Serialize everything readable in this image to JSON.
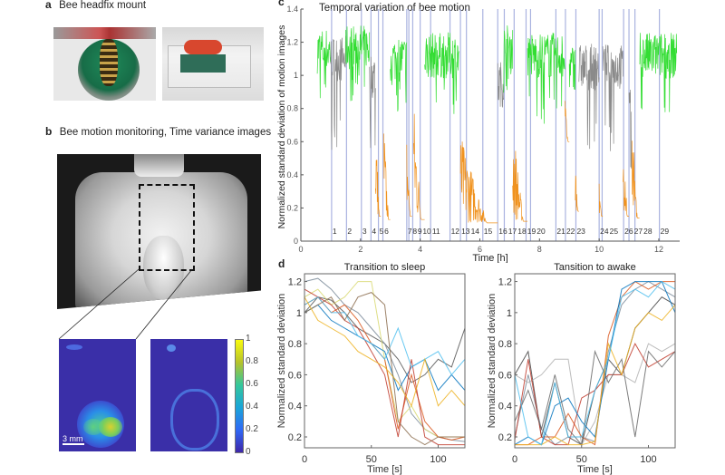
{
  "panels": {
    "a": {
      "label": "a",
      "title": "Bee headfix mount"
    },
    "b": {
      "label": "b",
      "title": "Bee motion monitoring, Time variance images",
      "scale_bar": "3 mm",
      "colorbar": {
        "ticks": [
          "1",
          "0.8",
          "0.6",
          "0.4",
          "0.2",
          "0"
        ],
        "colormap": "parula"
      }
    },
    "c": {
      "label": "c"
    },
    "d": {
      "label": "d"
    }
  },
  "chart_data": [
    {
      "type": "line",
      "title": "Temporal variation of bee motion",
      "xlabel": "Time [h]",
      "ylabel": "Normalized standard deviation of motion images",
      "xlim": [
        0,
        12.7
      ],
      "ylim": [
        0,
        1.4
      ],
      "xticks": [
        "0",
        "2",
        "4",
        "6",
        "8",
        "10",
        "12"
      ],
      "yticks": [
        "0",
        "0.2",
        "0.4",
        "0.6",
        "0.8",
        "1",
        "1.2",
        "1.4"
      ],
      "colors": {
        "active": "#33dd33",
        "rest": "#8a8a8a",
        "sleep": "#f0921e",
        "event_line": "#aab3e0"
      },
      "segments": [
        {
          "start": 0.55,
          "end": 1.0,
          "state": "active",
          "high": 1.15,
          "low": 1.0
        },
        {
          "start": 1.0,
          "end": 1.5,
          "state": "rest",
          "high": 1.1,
          "low": 0.75
        },
        {
          "start": 1.5,
          "end": 2.3,
          "state": "active",
          "high": 1.17,
          "low": 1.0
        },
        {
          "start": 2.3,
          "end": 2.5,
          "state": "rest",
          "high": 1.0,
          "low": 0.7
        },
        {
          "start": 2.5,
          "end": 2.68,
          "state": "sleep",
          "high": 0.82,
          "low": 0.15
        },
        {
          "start": 2.78,
          "end": 3.0,
          "state": "sleep",
          "high": 0.76,
          "low": 0.13
        },
        {
          "start": 3.0,
          "end": 3.55,
          "state": "active",
          "high": 1.1,
          "low": 0.95
        },
        {
          "start": 3.55,
          "end": 3.72,
          "state": "sleep",
          "high": 0.68,
          "low": 0.15
        },
        {
          "start": 3.78,
          "end": 4.15,
          "state": "sleep",
          "high": 0.88,
          "low": 0.13
        },
        {
          "start": 4.15,
          "end": 5.3,
          "state": "active",
          "high": 1.12,
          "low": 0.95
        },
        {
          "start": 5.35,
          "end": 6.6,
          "state": "sleep",
          "high": 0.65,
          "low": 0.11
        },
        {
          "start": 6.6,
          "end": 6.8,
          "state": "rest",
          "high": 0.95,
          "low": 0.6
        },
        {
          "start": 6.8,
          "end": 7.1,
          "state": "active",
          "high": 1.17,
          "low": 1.05
        },
        {
          "start": 7.1,
          "end": 7.6,
          "state": "sleep",
          "high": 0.75,
          "low": 0.12
        },
        {
          "start": 7.6,
          "end": 8.85,
          "state": "active",
          "high": 1.12,
          "low": 0.9
        },
        {
          "start": 8.85,
          "end": 9.0,
          "state": "sleep",
          "high": 0.88,
          "low": 0.6
        },
        {
          "start": 9.0,
          "end": 9.2,
          "state": "active",
          "high": 1.05,
          "low": 0.95
        },
        {
          "start": 9.2,
          "end": 9.32,
          "state": "sleep",
          "high": 0.6,
          "low": 0.18
        },
        {
          "start": 9.32,
          "end": 10.0,
          "state": "rest",
          "high": 1.05,
          "low": 0.75
        },
        {
          "start": 10.0,
          "end": 10.12,
          "state": "sleep",
          "high": 0.35,
          "low": 0.15
        },
        {
          "start": 10.12,
          "end": 10.8,
          "state": "rest",
          "high": 1.05,
          "low": 0.7
        },
        {
          "start": 10.8,
          "end": 11.0,
          "state": "sleep",
          "high": 0.75,
          "low": 0.15
        },
        {
          "start": 11.0,
          "end": 11.08,
          "state": "rest",
          "high": 0.9,
          "low": 0.6
        },
        {
          "start": 11.1,
          "end": 11.35,
          "state": "sleep",
          "high": 0.8,
          "low": 0.14
        },
        {
          "start": 11.35,
          "end": 12.6,
          "state": "active",
          "high": 1.12,
          "low": 0.9
        }
      ],
      "events": [
        {
          "label": "1",
          "t": 1.03
        },
        {
          "label": "2",
          "t": 1.53
        },
        {
          "label": "3",
          "t": 2.03
        },
        {
          "label": "4",
          "t": 2.35
        },
        {
          "label": "5",
          "t": 2.6
        },
        {
          "label": "6",
          "t": 2.75
        },
        {
          "label": "7",
          "t": 3.55
        },
        {
          "label": "8",
          "t": 3.62
        },
        {
          "label": "9",
          "t": 3.75
        },
        {
          "label": "10",
          "t": 4.0
        },
        {
          "label": "11",
          "t": 4.35
        },
        {
          "label": "12",
          "t": 5.0
        },
        {
          "label": "13",
          "t": 5.35
        },
        {
          "label": "14",
          "t": 5.55
        },
        {
          "label": "15",
          "t": 6.1
        },
        {
          "label": "16",
          "t": 6.6
        },
        {
          "label": "17",
          "t": 6.82
        },
        {
          "label": "18",
          "t": 7.15
        },
        {
          "label": "19",
          "t": 7.55
        },
        {
          "label": "20",
          "t": 7.7
        },
        {
          "label": "21",
          "t": 8.55
        },
        {
          "label": "22",
          "t": 8.87
        },
        {
          "label": "23",
          "t": 9.22
        },
        {
          "label": "24",
          "t": 10.0
        },
        {
          "label": "25",
          "t": 10.1
        },
        {
          "label": "26",
          "t": 10.82
        },
        {
          "label": "27",
          "t": 11.0
        },
        {
          "label": "28",
          "t": 11.2
        },
        {
          "label": "29",
          "t": 12.02
        }
      ]
    },
    {
      "type": "line",
      "title": "Transition to sleep",
      "xlabel": "Time [s]",
      "ylabel": "Normalized standard deviation",
      "xlim": [
        0,
        120
      ],
      "ylim": [
        0.13,
        1.25
      ],
      "xticks": [
        "0",
        "50",
        "100"
      ],
      "yticks": [
        "0.2",
        "0.4",
        "0.6",
        "0.8",
        "1",
        "1.2"
      ],
      "x": [
        0,
        10,
        20,
        30,
        40,
        50,
        60,
        70,
        80,
        90,
        100,
        110,
        120
      ],
      "series": [
        {
          "color": "#555555",
          "values": [
            1.0,
            1.1,
            1.08,
            1.0,
            0.9,
            0.85,
            0.8,
            0.7,
            0.55,
            0.6,
            0.7,
            0.65,
            0.9
          ]
        },
        {
          "color": "#7a8a99",
          "values": [
            1.2,
            1.22,
            1.15,
            1.05,
            1.0,
            0.9,
            0.8,
            0.6,
            0.35,
            0.25,
            0.2,
            0.18,
            0.17
          ]
        },
        {
          "color": "#d8d870",
          "values": [
            1.1,
            1.15,
            1.05,
            1.1,
            1.2,
            1.2,
            0.7,
            0.3,
            0.4,
            0.25,
            0.2,
            0.2,
            0.2
          ]
        },
        {
          "color": "#d95319",
          "values": [
            1.05,
            1.1,
            1.0,
            1.05,
            0.95,
            0.8,
            0.7,
            0.25,
            0.6,
            0.3,
            0.2,
            0.18,
            0.2
          ]
        },
        {
          "color": "#0072bd",
          "values": [
            1.0,
            1.05,
            0.95,
            0.9,
            0.85,
            0.8,
            0.75,
            0.5,
            0.65,
            0.7,
            0.5,
            0.6,
            0.5
          ]
        },
        {
          "color": "#c0392b",
          "values": [
            1.15,
            1.1,
            1.05,
            0.95,
            0.9,
            0.75,
            0.6,
            0.2,
            0.7,
            0.2,
            0.15,
            0.15,
            0.15
          ]
        },
        {
          "color": "#4dbeee",
          "values": [
            1.05,
            1.1,
            1.0,
            1.0,
            0.85,
            0.8,
            0.7,
            0.9,
            0.65,
            0.7,
            0.75,
            0.6,
            0.7
          ]
        },
        {
          "color": "#8c6d4f",
          "values": [
            1.0,
            1.05,
            1.1,
            0.95,
            1.1,
            1.13,
            1.05,
            0.3,
            0.2,
            0.15,
            0.2,
            0.2,
            0.2
          ]
        },
        {
          "color": "#edb120",
          "values": [
            1.1,
            0.95,
            0.9,
            0.85,
            0.75,
            0.7,
            0.65,
            0.55,
            0.4,
            0.7,
            0.4,
            0.5,
            0.4
          ]
        }
      ]
    },
    {
      "type": "line",
      "title": "Tansition to awake",
      "xlabel": "Time [s]",
      "ylabel": "Normalized standard deviation",
      "xlim": [
        0,
        120
      ],
      "ylim": [
        0.13,
        1.25
      ],
      "xticks": [
        "0",
        "50",
        "100"
      ],
      "yticks": [
        "0.2",
        "0.4",
        "0.6",
        "0.8",
        "1",
        "1.2"
      ],
      "x": [
        0,
        10,
        20,
        30,
        40,
        50,
        60,
        70,
        80,
        90,
        100,
        110,
        120
      ],
      "series": [
        {
          "color": "#444444",
          "values": [
            0.6,
            0.75,
            0.2,
            0.55,
            0.2,
            0.15,
            0.5,
            0.7,
            0.6,
            0.9,
            1.0,
            1.1,
            1.05
          ]
        },
        {
          "color": "#7a8a99",
          "values": [
            0.2,
            0.6,
            0.25,
            0.15,
            0.2,
            0.2,
            0.17,
            0.75,
            1.05,
            1.15,
            1.2,
            1.15,
            1.1
          ]
        },
        {
          "color": "#b0b0b0",
          "values": [
            0.6,
            0.55,
            0.6,
            0.7,
            0.7,
            0.15,
            0.3,
            0.6,
            0.6,
            0.55,
            0.8,
            0.75,
            0.8
          ]
        },
        {
          "color": "#d95319",
          "values": [
            0.15,
            0.15,
            0.2,
            0.2,
            0.35,
            0.2,
            0.15,
            0.85,
            1.1,
            1.2,
            1.15,
            1.2,
            1.2
          ]
        },
        {
          "color": "#c0392b",
          "values": [
            0.18,
            0.7,
            0.2,
            0.15,
            0.15,
            0.45,
            0.5,
            0.6,
            0.6,
            0.8,
            0.65,
            0.7,
            0.75
          ]
        },
        {
          "color": "#0072bd",
          "values": [
            0.15,
            0.2,
            0.15,
            0.4,
            0.45,
            0.3,
            0.2,
            0.7,
            1.15,
            1.2,
            1.2,
            1.2,
            1.0
          ]
        },
        {
          "color": "#666666",
          "values": [
            0.3,
            0.5,
            0.25,
            0.6,
            0.25,
            0.15,
            0.75,
            0.55,
            0.7,
            0.2,
            0.75,
            0.65,
            0.75
          ]
        },
        {
          "color": "#edb120",
          "values": [
            0.15,
            0.15,
            0.15,
            0.2,
            0.15,
            0.15,
            0.17,
            0.8,
            0.6,
            0.9,
            1.0,
            0.95,
            1.05
          ]
        },
        {
          "color": "#4dbeee",
          "values": [
            0.6,
            0.2,
            0.15,
            0.55,
            0.2,
            0.2,
            0.5,
            0.7,
            1.1,
            1.15,
            1.1,
            1.2,
            1.15
          ]
        }
      ]
    }
  ]
}
